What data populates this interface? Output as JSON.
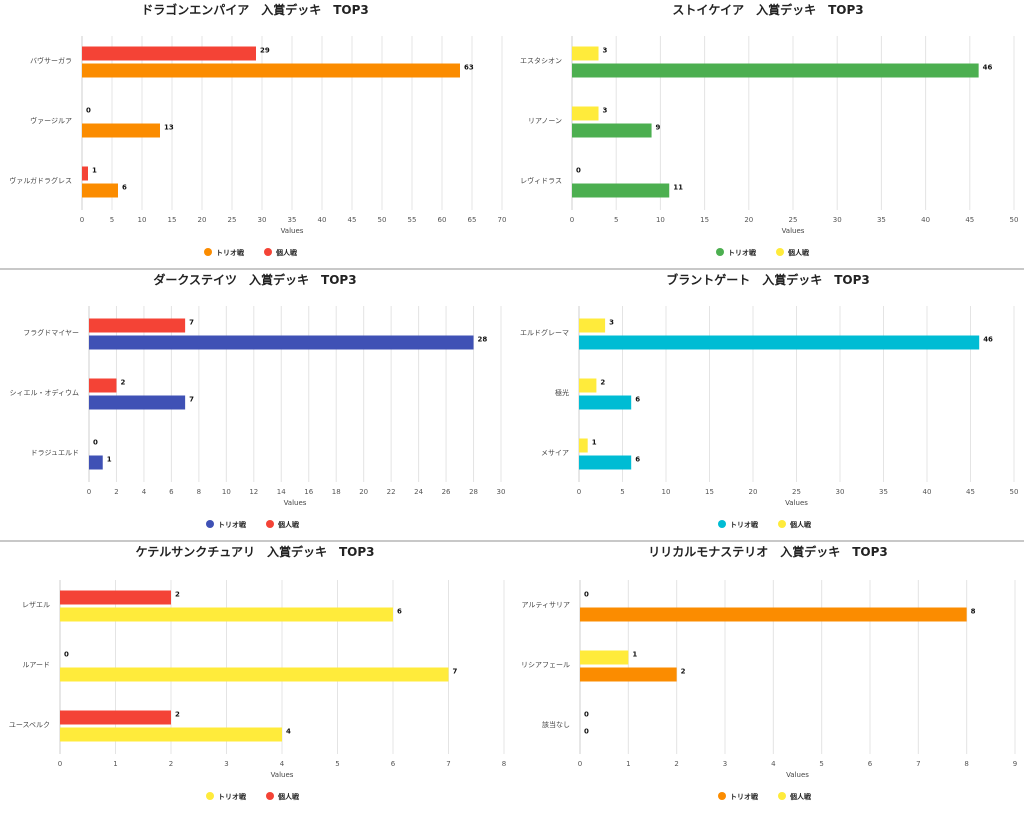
{
  "chart_data": [
    {
      "type": "bar",
      "orientation": "horizontal",
      "title": "ドラゴンエンパイア　入賞デッキ　TOP3",
      "xlabel": "Values",
      "xlim": [
        0,
        70
      ],
      "xticks": [
        0,
        5,
        10,
        15,
        20,
        25,
        30,
        35,
        40,
        45,
        50,
        55,
        60,
        65,
        70
      ],
      "categories": [
        "バヴサーガラ",
        "ヴァージルア",
        "ヴァルガドラグレス"
      ],
      "series": [
        {
          "name": "トリオ戦",
          "color": "#FB8C00",
          "values": [
            63,
            13,
            6
          ]
        },
        {
          "name": "個人戦",
          "color": "#F44336",
          "values": [
            29,
            0,
            1
          ]
        }
      ],
      "bar_order": [
        "個人戦",
        "トリオ戦"
      ],
      "legend": "bottom"
    },
    {
      "type": "bar",
      "orientation": "horizontal",
      "title": "ストイケイア　入賞デッキ　TOP3",
      "xlabel": "Values",
      "xlim": [
        0,
        50
      ],
      "xticks": [
        0,
        5,
        10,
        15,
        20,
        25,
        30,
        35,
        40,
        45,
        50
      ],
      "categories": [
        "エスタシオン",
        "リアノーン",
        "レヴィドラス"
      ],
      "series": [
        {
          "name": "トリオ戦",
          "color": "#4CAF50",
          "values": [
            46,
            9,
            11
          ]
        },
        {
          "name": "個人戦",
          "color": "#FFEB3B",
          "values": [
            3,
            3,
            0
          ]
        }
      ],
      "bar_order": [
        "個人戦",
        "トリオ戦"
      ],
      "legend": "bottom"
    },
    {
      "type": "bar",
      "orientation": "horizontal",
      "title": "ダークステイツ　入賞デッキ　TOP3",
      "xlabel": "Values",
      "xlim": [
        0,
        30
      ],
      "xticks": [
        0,
        2,
        4,
        6,
        8,
        10,
        12,
        14,
        16,
        18,
        20,
        22,
        24,
        26,
        28,
        30
      ],
      "categories": [
        "フラグドマイヤー",
        "シィエル・オディウム",
        "ドラジュエルド"
      ],
      "series": [
        {
          "name": "トリオ戦",
          "color": "#3F51B5",
          "values": [
            28,
            7,
            1
          ]
        },
        {
          "name": "個人戦",
          "color": "#F44336",
          "values": [
            7,
            2,
            0
          ]
        }
      ],
      "bar_order": [
        "個人戦",
        "トリオ戦"
      ],
      "legend": "bottom"
    },
    {
      "type": "bar",
      "orientation": "horizontal",
      "title": "ブラントゲート　入賞デッキ　TOP3",
      "xlabel": "Values",
      "xlim": [
        0,
        50
      ],
      "xticks": [
        0,
        5,
        10,
        15,
        20,
        25,
        30,
        35,
        40,
        45,
        50
      ],
      "categories": [
        "エルドグレーマ",
        "極光",
        "メサイア"
      ],
      "series": [
        {
          "name": "トリオ戦",
          "color": "#00BCD4",
          "values": [
            46,
            6,
            6
          ]
        },
        {
          "name": "個人戦",
          "color": "#FFEB3B",
          "values": [
            3,
            2,
            1
          ]
        }
      ],
      "bar_order": [
        "個人戦",
        "トリオ戦"
      ],
      "legend": "bottom"
    },
    {
      "type": "bar",
      "orientation": "horizontal",
      "title": "ケテルサンクチュアリ　入賞デッキ　TOP3",
      "xlabel": "Values",
      "xlim": [
        0,
        8
      ],
      "xticks": [
        0,
        1,
        2,
        3,
        4,
        5,
        6,
        7,
        8
      ],
      "categories": [
        "レザエル",
        "ルアード",
        "ユースベルク"
      ],
      "series": [
        {
          "name": "トリオ戦",
          "color": "#FFEB3B",
          "values": [
            6,
            7,
            4
          ]
        },
        {
          "name": "個人戦",
          "color": "#F44336",
          "values": [
            2,
            0,
            2
          ]
        }
      ],
      "bar_order": [
        "個人戦",
        "トリオ戦"
      ],
      "legend": "bottom"
    },
    {
      "type": "bar",
      "orientation": "horizontal",
      "title": "リリカルモナステリオ　入賞デッキ　TOP3",
      "xlabel": "Values",
      "xlim": [
        0,
        9
      ],
      "xticks": [
        0,
        1,
        2,
        3,
        4,
        5,
        6,
        7,
        8,
        9
      ],
      "categories": [
        "アルティサリア",
        "リシアフェール",
        "該当なし"
      ],
      "series": [
        {
          "name": "トリオ戦",
          "color": "#FB8C00",
          "values": [
            8,
            2,
            0
          ]
        },
        {
          "name": "個人戦",
          "color": "#FFEB3B",
          "values": [
            0,
            1,
            0
          ]
        }
      ],
      "bar_order": [
        "個人戦",
        "トリオ戦"
      ],
      "legend": "bottom"
    }
  ]
}
